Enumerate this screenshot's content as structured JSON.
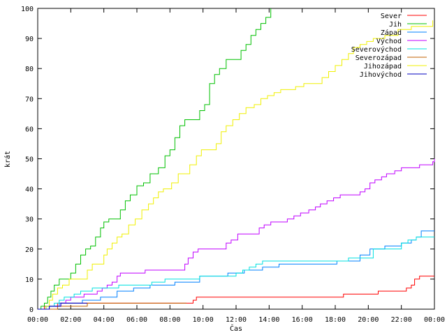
{
  "chart_data": {
    "type": "line",
    "xlabel": "Čas",
    "ylabel": "krát",
    "xlim": [
      0,
      24
    ],
    "ylim": [
      0,
      100
    ],
    "x_ticks": [
      {
        "value": 0,
        "label": "00:00"
      },
      {
        "value": 2,
        "label": "02:00"
      },
      {
        "value": 4,
        "label": "04:00"
      },
      {
        "value": 6,
        "label": "06:00"
      },
      {
        "value": 8,
        "label": "08:00"
      },
      {
        "value": 10,
        "label": "10:00"
      },
      {
        "value": 12,
        "label": "12:00"
      },
      {
        "value": 14,
        "label": "14:00"
      },
      {
        "value": 16,
        "label": "16:00"
      },
      {
        "value": 18,
        "label": "18:00"
      },
      {
        "value": 20,
        "label": "20:00"
      },
      {
        "value": 22,
        "label": "22:00"
      },
      {
        "value": 24,
        "label": "00:00"
      }
    ],
    "y_ticks": [
      0,
      10,
      20,
      30,
      40,
      50,
      60,
      70,
      80,
      90,
      100
    ],
    "legend_position": "top-right",
    "grid": false,
    "series": [
      {
        "name": "Sever",
        "color": "#ff0000",
        "points": [
          [
            0,
            0
          ],
          [
            0.3,
            0
          ],
          [
            0.4,
            1
          ],
          [
            1.1,
            1
          ],
          [
            1.2,
            2
          ],
          [
            9.3,
            2
          ],
          [
            9.4,
            3
          ],
          [
            9.6,
            4
          ],
          [
            18.3,
            4
          ],
          [
            18.5,
            5
          ],
          [
            20.4,
            5
          ],
          [
            20.6,
            6
          ],
          [
            22.1,
            6
          ],
          [
            22.3,
            7
          ],
          [
            22.6,
            8
          ],
          [
            22.8,
            10
          ],
          [
            23.1,
            11
          ],
          [
            24,
            11
          ]
        ]
      },
      {
        "name": "Jih",
        "color": "#00c000",
        "points": [
          [
            0,
            0
          ],
          [
            0.2,
            1
          ],
          [
            0.4,
            2
          ],
          [
            0.6,
            4
          ],
          [
            0.8,
            6
          ],
          [
            1.0,
            8
          ],
          [
            1.3,
            10
          ],
          [
            1.7,
            10
          ],
          [
            2.0,
            12
          ],
          [
            2.3,
            15
          ],
          [
            2.6,
            18
          ],
          [
            2.9,
            20
          ],
          [
            3.2,
            21
          ],
          [
            3.5,
            24
          ],
          [
            3.8,
            27
          ],
          [
            4.0,
            29
          ],
          [
            4.3,
            30
          ],
          [
            4.7,
            30
          ],
          [
            5.0,
            33
          ],
          [
            5.3,
            36
          ],
          [
            5.6,
            38
          ],
          [
            6.0,
            41
          ],
          [
            6.4,
            42
          ],
          [
            6.8,
            45
          ],
          [
            7.3,
            47
          ],
          [
            7.7,
            51
          ],
          [
            8.0,
            53
          ],
          [
            8.3,
            57
          ],
          [
            8.6,
            61
          ],
          [
            8.9,
            63
          ],
          [
            9.5,
            63
          ],
          [
            9.8,
            66
          ],
          [
            10.1,
            68
          ],
          [
            10.4,
            75
          ],
          [
            10.7,
            78
          ],
          [
            11.0,
            80
          ],
          [
            11.4,
            83
          ],
          [
            12.0,
            83
          ],
          [
            12.3,
            86
          ],
          [
            12.6,
            88
          ],
          [
            12.9,
            91
          ],
          [
            13.2,
            93
          ],
          [
            13.5,
            95
          ],
          [
            13.8,
            97
          ],
          [
            14.1,
            100
          ]
        ]
      },
      {
        "name": "Západ",
        "color": "#0080ff",
        "points": [
          [
            0,
            0
          ],
          [
            0.3,
            0
          ],
          [
            0.5,
            1
          ],
          [
            1.1,
            1
          ],
          [
            1.3,
            2
          ],
          [
            2.5,
            2
          ],
          [
            2.7,
            3
          ],
          [
            3.6,
            3
          ],
          [
            3.8,
            4
          ],
          [
            4.6,
            4
          ],
          [
            4.8,
            6
          ],
          [
            5.6,
            6
          ],
          [
            5.8,
            7
          ],
          [
            6.5,
            7
          ],
          [
            6.8,
            8
          ],
          [
            8.0,
            8
          ],
          [
            8.3,
            9
          ],
          [
            9.6,
            9
          ],
          [
            9.8,
            11
          ],
          [
            11.3,
            11
          ],
          [
            11.5,
            12
          ],
          [
            12.3,
            12
          ],
          [
            12.5,
            13
          ],
          [
            13.4,
            13
          ],
          [
            13.6,
            14
          ],
          [
            14.4,
            14
          ],
          [
            14.6,
            15
          ],
          [
            17.9,
            15
          ],
          [
            18.1,
            16
          ],
          [
            19.3,
            16
          ],
          [
            19.5,
            18
          ],
          [
            19.9,
            18
          ],
          [
            20.1,
            20
          ],
          [
            20.8,
            20
          ],
          [
            21.0,
            21
          ],
          [
            21.8,
            21
          ],
          [
            22.0,
            22
          ],
          [
            22.4,
            22
          ],
          [
            22.6,
            23
          ],
          [
            22.9,
            24
          ],
          [
            23.2,
            26
          ],
          [
            24,
            26
          ]
        ]
      },
      {
        "name": "Východ",
        "color": "#c000ff",
        "points": [
          [
            0,
            0
          ],
          [
            0.5,
            0
          ],
          [
            0.7,
            1
          ],
          [
            1.2,
            1
          ],
          [
            1.4,
            2
          ],
          [
            1.7,
            3
          ],
          [
            2.0,
            4
          ],
          [
            2.5,
            4
          ],
          [
            2.8,
            5
          ],
          [
            3.4,
            5
          ],
          [
            3.6,
            6
          ],
          [
            3.9,
            7
          ],
          [
            4.2,
            8
          ],
          [
            4.5,
            9
          ],
          [
            4.8,
            11
          ],
          [
            5.0,
            12
          ],
          [
            6.3,
            12
          ],
          [
            6.5,
            13
          ],
          [
            8.7,
            13
          ],
          [
            8.9,
            15
          ],
          [
            9.1,
            17
          ],
          [
            9.4,
            19
          ],
          [
            9.7,
            20
          ],
          [
            11.2,
            20
          ],
          [
            11.4,
            22
          ],
          [
            11.7,
            23
          ],
          [
            12.1,
            25
          ],
          [
            13.2,
            25
          ],
          [
            13.4,
            27
          ],
          [
            13.7,
            28
          ],
          [
            14.1,
            29
          ],
          [
            14.9,
            29
          ],
          [
            15.1,
            30
          ],
          [
            15.5,
            31
          ],
          [
            15.9,
            32
          ],
          [
            16.4,
            33
          ],
          [
            16.8,
            34
          ],
          [
            17.1,
            35
          ],
          [
            17.5,
            36
          ],
          [
            17.9,
            37
          ],
          [
            18.3,
            38
          ],
          [
            19.3,
            38
          ],
          [
            19.5,
            39
          ],
          [
            19.8,
            40
          ],
          [
            20.1,
            42
          ],
          [
            20.4,
            43
          ],
          [
            20.8,
            44
          ],
          [
            21.1,
            45
          ],
          [
            21.6,
            46
          ],
          [
            22.0,
            47
          ],
          [
            22.9,
            47
          ],
          [
            23.1,
            48
          ],
          [
            23.7,
            48
          ],
          [
            23.9,
            49
          ],
          [
            24,
            50
          ]
        ]
      },
      {
        "name": "Severovýchod",
        "color": "#00e0e0",
        "points": [
          [
            0,
            0
          ],
          [
            0.3,
            0
          ],
          [
            0.5,
            1
          ],
          [
            1.0,
            2
          ],
          [
            1.3,
            3
          ],
          [
            1.6,
            4
          ],
          [
            2.2,
            5
          ],
          [
            2.6,
            6
          ],
          [
            3.0,
            6
          ],
          [
            3.3,
            7
          ],
          [
            4.6,
            7
          ],
          [
            4.9,
            8
          ],
          [
            6.7,
            8
          ],
          [
            6.9,
            9
          ],
          [
            7.5,
            9
          ],
          [
            7.7,
            10
          ],
          [
            9.5,
            10
          ],
          [
            9.8,
            11
          ],
          [
            11.8,
            11
          ],
          [
            12.0,
            12
          ],
          [
            12.4,
            13
          ],
          [
            12.8,
            14
          ],
          [
            13.2,
            15
          ],
          [
            13.6,
            16
          ],
          [
            18.6,
            16
          ],
          [
            18.8,
            17
          ],
          [
            20.0,
            17
          ],
          [
            20.3,
            20
          ],
          [
            21.7,
            20
          ],
          [
            22.0,
            22
          ],
          [
            22.4,
            23
          ],
          [
            22.9,
            24
          ],
          [
            24,
            24
          ]
        ]
      },
      {
        "name": "Severozápad",
        "color": "#c06000",
        "points": [
          [
            0,
            0
          ],
          [
            1.0,
            0
          ],
          [
            1.2,
            1
          ],
          [
            2.8,
            1
          ],
          [
            3.0,
            2
          ],
          [
            9.0,
            2
          ]
        ]
      },
      {
        "name": "Jihozápad",
        "color": "#f0f000",
        "points": [
          [
            0,
            0
          ],
          [
            0.3,
            0
          ],
          [
            0.5,
            1
          ],
          [
            0.7,
            3
          ],
          [
            0.9,
            5
          ],
          [
            1.2,
            7
          ],
          [
            1.5,
            8
          ],
          [
            1.9,
            10
          ],
          [
            2.7,
            10
          ],
          [
            3.0,
            13
          ],
          [
            3.3,
            15
          ],
          [
            3.8,
            15
          ],
          [
            4.0,
            18
          ],
          [
            4.2,
            20
          ],
          [
            4.5,
            22
          ],
          [
            4.8,
            24
          ],
          [
            5.1,
            25
          ],
          [
            5.5,
            28
          ],
          [
            5.9,
            30
          ],
          [
            6.3,
            33
          ],
          [
            6.7,
            35
          ],
          [
            7.0,
            37
          ],
          [
            7.3,
            39
          ],
          [
            7.6,
            40
          ],
          [
            8.1,
            42
          ],
          [
            8.5,
            45
          ],
          [
            9.0,
            45
          ],
          [
            9.2,
            48
          ],
          [
            9.6,
            51
          ],
          [
            9.9,
            53
          ],
          [
            10.6,
            53
          ],
          [
            10.8,
            55
          ],
          [
            11.1,
            59
          ],
          [
            11.4,
            61
          ],
          [
            11.8,
            63
          ],
          [
            12.2,
            65
          ],
          [
            12.6,
            67
          ],
          [
            13.1,
            68
          ],
          [
            13.5,
            70
          ],
          [
            13.9,
            71
          ],
          [
            14.3,
            72
          ],
          [
            14.7,
            73
          ],
          [
            15.4,
            73
          ],
          [
            15.6,
            74
          ],
          [
            16.1,
            75
          ],
          [
            16.9,
            75
          ],
          [
            17.2,
            77
          ],
          [
            17.6,
            79
          ],
          [
            18.0,
            81
          ],
          [
            18.4,
            83
          ],
          [
            18.8,
            85
          ],
          [
            19.1,
            87
          ],
          [
            19.5,
            88
          ],
          [
            19.9,
            89
          ],
          [
            20.3,
            90
          ],
          [
            21.0,
            91
          ],
          [
            21.5,
            91
          ],
          [
            21.8,
            93
          ],
          [
            22.3,
            93
          ],
          [
            22.6,
            94
          ],
          [
            23.7,
            94
          ],
          [
            23.9,
            96
          ]
        ]
      },
      {
        "name": "Jihovýchod",
        "color": "#0000c0",
        "points": [
          [
            0,
            0
          ],
          [
            0.5,
            0
          ],
          [
            0.7,
            1
          ],
          [
            1.2,
            1
          ],
          [
            1.4,
            2
          ],
          [
            3.0,
            2
          ]
        ]
      }
    ]
  }
}
